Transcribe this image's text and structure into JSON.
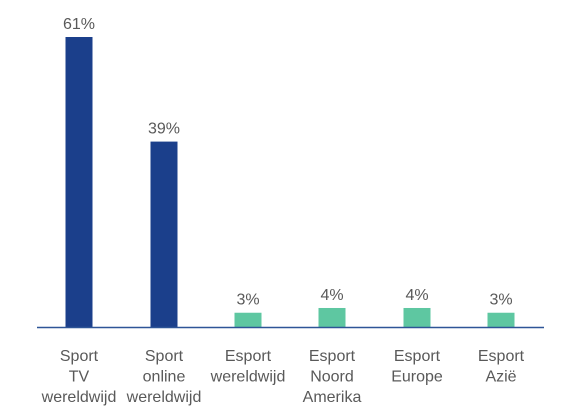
{
  "chart_data": {
    "type": "bar",
    "title": "",
    "xlabel": "",
    "ylabel": "",
    "ylim": [
      0,
      61
    ],
    "grid": false,
    "legend": "none",
    "value_suffix": "%",
    "categories": [
      [
        "Sport",
        "TV",
        "wereldwijd"
      ],
      [
        "Sport",
        "online",
        "wereldwijd"
      ],
      [
        "Esport",
        "wereldwijd"
      ],
      [
        "Esport",
        "Noord",
        "Amerika"
      ],
      [
        "Esport",
        "Europe"
      ],
      [
        "Esport",
        "Azië"
      ]
    ],
    "values": [
      61,
      39,
      3,
      4,
      4,
      3
    ],
    "value_labels": [
      "61%",
      "39%",
      "3%",
      "4%",
      "4%",
      "3%"
    ],
    "colors": [
      "#1b3f8b",
      "#1b3f8b",
      "#5ec7a1",
      "#5ec7a1",
      "#5ec7a1",
      "#5ec7a1"
    ],
    "axis_color": "#2e5597"
  }
}
